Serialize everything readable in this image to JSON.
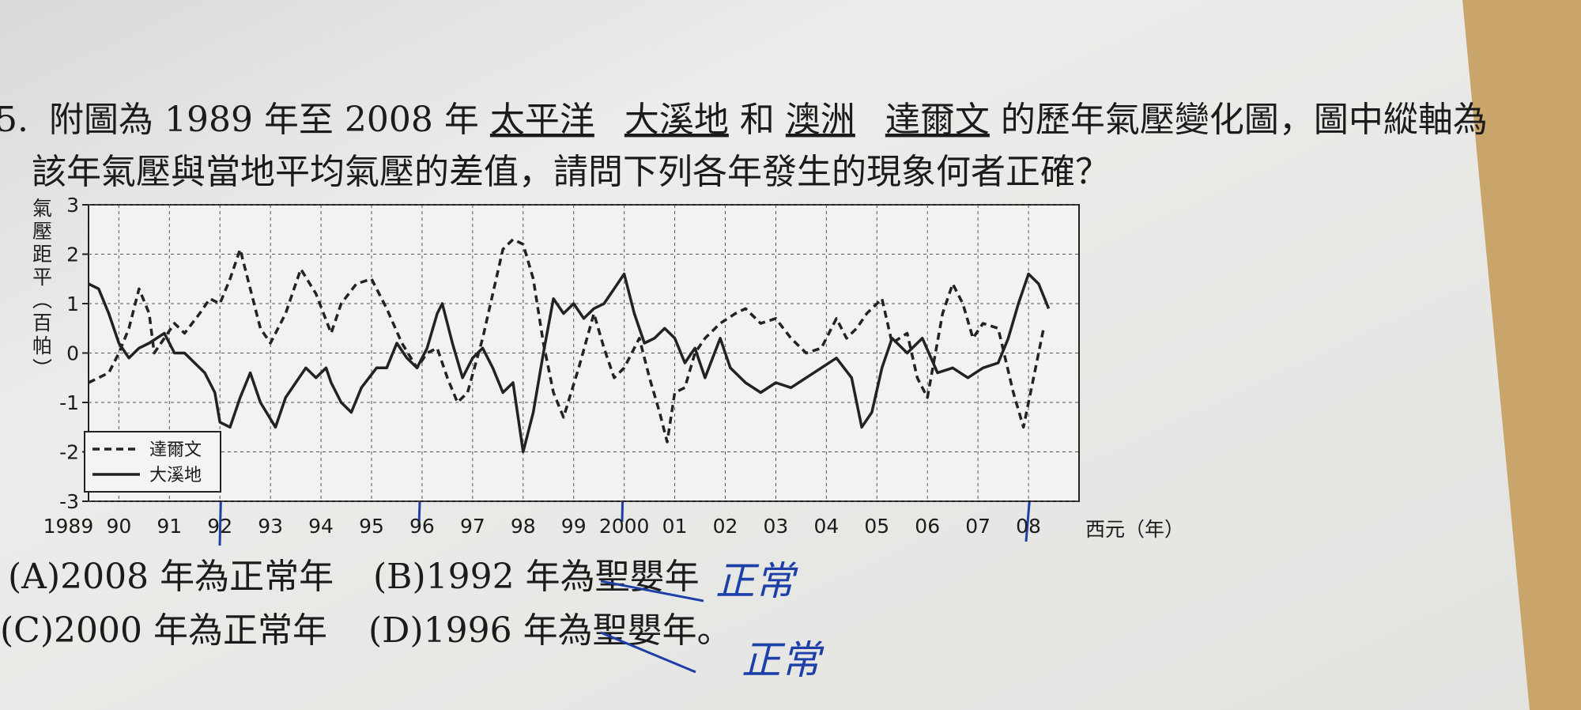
{
  "question": {
    "number": "5.",
    "line1": [
      "附圖為 1989 年至 2008 年",
      "太平洋",
      "大溪地",
      "和",
      "澳洲",
      "達爾文",
      "的歷年氣壓變化圖，圖中縱軸為"
    ],
    "line2": "該年氣壓與當地平均氣壓的差值，請問下列各年發生的現象何者正確？"
  },
  "options": [
    "(A)2008 年為正常年",
    "(B)1992 年為聖嬰年",
    "(C)2000 年為正常年",
    "(D)1996 年為聖嬰年。"
  ],
  "handwriting": [
    "正常",
    "正常"
  ],
  "chart_data": {
    "type": "line",
    "y_label": "氣壓距平（百帕）",
    "x_label": "西元（年）",
    "xlim": [
      1989.4,
      2009
    ],
    "ylim": [
      -3,
      3
    ],
    "yticks": [
      -3,
      -2,
      -1,
      0,
      1,
      2,
      3
    ],
    "xticks": [
      {
        "value": 1989,
        "label": "1989"
      },
      {
        "value": 1990,
        "label": "90"
      },
      {
        "value": 1991,
        "label": "91"
      },
      {
        "value": 1992,
        "label": "92"
      },
      {
        "value": 1993,
        "label": "93"
      },
      {
        "value": 1994,
        "label": "94"
      },
      {
        "value": 1995,
        "label": "95"
      },
      {
        "value": 1996,
        "label": "96"
      },
      {
        "value": 1997,
        "label": "97"
      },
      {
        "value": 1998,
        "label": "98"
      },
      {
        "value": 1999,
        "label": "99"
      },
      {
        "value": 2000,
        "label": "2000"
      },
      {
        "value": 2001,
        "label": "01"
      },
      {
        "value": 2002,
        "label": "02"
      },
      {
        "value": 2003,
        "label": "03"
      },
      {
        "value": 2004,
        "label": "04"
      },
      {
        "value": 2005,
        "label": "05"
      },
      {
        "value": 2006,
        "label": "06"
      },
      {
        "value": 2007,
        "label": "07"
      },
      {
        "value": 2008,
        "label": "08"
      }
    ],
    "grid": true,
    "legend": "lower-left",
    "series": [
      {
        "name": "達爾文",
        "color": "#222222",
        "dash": true,
        "x": [
          1989.4,
          1989.8,
          1990.0,
          1990.2,
          1990.4,
          1990.6,
          1990.7,
          1990.9,
          1991.1,
          1991.3,
          1991.6,
          1991.8,
          1992.0,
          1992.2,
          1992.4,
          1992.6,
          1992.8,
          1993.0,
          1993.3,
          1993.6,
          1993.9,
          1994.2,
          1994.4,
          1994.7,
          1995.0,
          1995.3,
          1995.6,
          1995.9,
          1996.1,
          1996.3,
          1996.5,
          1996.7,
          1996.9,
          1997.2,
          1997.4,
          1997.6,
          1997.8,
          1998.0,
          1998.2,
          1998.4,
          1998.6,
          1998.8,
          1999.1,
          1999.4,
          1999.6,
          1999.8,
          2000.0,
          2000.3,
          2000.5,
          2000.7,
          2000.85,
          2001.0,
          2001.2,
          2001.4,
          2001.6,
          2001.9,
          2002.2,
          2002.4,
          2002.7,
          2003.0,
          2003.3,
          2003.6,
          2003.9,
          2004.2,
          2004.4,
          2004.6,
          2004.8,
          2005.1,
          2005.3,
          2005.6,
          2005.8,
          2006.0,
          2006.3,
          2006.5,
          2006.7,
          2006.9,
          2007.1,
          2007.4,
          2007.7,
          2007.9,
          2008.1,
          2008.3
        ],
        "values": [
          -0.6,
          -0.4,
          0,
          0.5,
          1.3,
          0.8,
          0,
          0.3,
          0.6,
          0.4,
          0.8,
          1.1,
          1.0,
          1.5,
          2.1,
          1.3,
          0.5,
          0.2,
          0.8,
          1.7,
          1.2,
          0.4,
          1.0,
          1.4,
          1.5,
          0.9,
          0.2,
          -0.3,
          0,
          0.1,
          -0.5,
          -1.0,
          -0.8,
          0.3,
          1.2,
          2.1,
          2.3,
          2.2,
          1.5,
          0.2,
          -0.8,
          -1.3,
          -0.3,
          0.8,
          0.1,
          -0.5,
          -0.3,
          0.3,
          -0.5,
          -1.2,
          -1.8,
          -0.8,
          -0.7,
          0,
          0.3,
          0.6,
          0.8,
          0.9,
          0.6,
          0.7,
          0.3,
          0,
          0.1,
          0.7,
          0.3,
          0.5,
          0.8,
          1.1,
          0.2,
          0.4,
          -0.5,
          -0.9,
          0.8,
          1.4,
          1.0,
          0.3,
          0.6,
          0.5,
          -0.8,
          -1.5,
          -0.5,
          0.5
        ]
      },
      {
        "name": "大溪地",
        "color": "#222222",
        "dash": false,
        "x": [
          1989.4,
          1989.6,
          1989.8,
          1990.0,
          1990.2,
          1990.4,
          1990.6,
          1990.9,
          1991.1,
          1991.3,
          1991.5,
          1991.7,
          1991.9,
          1992.0,
          1992.2,
          1992.4,
          1992.6,
          1992.8,
          1993.1,
          1993.3,
          1993.5,
          1993.7,
          1993.9,
          1994.1,
          1994.2,
          1994.4,
          1994.6,
          1994.8,
          1995.1,
          1995.3,
          1995.5,
          1995.7,
          1995.9,
          1996.1,
          1996.3,
          1996.4,
          1996.6,
          1996.8,
          1997.0,
          1997.2,
          1997.4,
          1997.6,
          1997.8,
          1998.0,
          1998.2,
          1998.4,
          1998.6,
          1998.8,
          1999.0,
          1999.2,
          1999.4,
          1999.6,
          1999.8,
          2000.0,
          2000.2,
          2000.4,
          2000.6,
          2000.8,
          2001.0,
          2001.2,
          2001.4,
          2001.6,
          2001.9,
          2002.1,
          2002.4,
          2002.7,
          2003.0,
          2003.3,
          2003.6,
          2003.9,
          2004.2,
          2004.5,
          2004.7,
          2004.9,
          2005.1,
          2005.3,
          2005.6,
          2005.9,
          2006.2,
          2006.5,
          2006.8,
          2007.1,
          2007.4,
          2007.6,
          2007.8,
          2008.0,
          2008.2,
          2008.4
        ],
        "values": [
          1.4,
          1.3,
          0.8,
          0.2,
          -0.1,
          0.1,
          0.2,
          0.4,
          0,
          0,
          -0.2,
          -0.4,
          -0.8,
          -1.4,
          -1.5,
          -0.9,
          -0.4,
          -1.0,
          -1.5,
          -0.9,
          -0.6,
          -0.3,
          -0.5,
          -0.3,
          -0.6,
          -1.0,
          -1.2,
          -0.7,
          -0.3,
          -0.3,
          0.2,
          -0.1,
          -0.3,
          0.1,
          0.8,
          1.0,
          0.2,
          -0.5,
          -0.1,
          0.1,
          -0.3,
          -0.8,
          -0.6,
          -2.0,
          -1.2,
          0,
          1.1,
          0.8,
          1.0,
          0.7,
          0.9,
          1.0,
          1.3,
          1.6,
          0.8,
          0.2,
          0.3,
          0.5,
          0.3,
          -0.2,
          0.1,
          -0.5,
          0.3,
          -0.3,
          -0.6,
          -0.8,
          -0.6,
          -0.7,
          -0.5,
          -0.3,
          -0.1,
          -0.5,
          -1.5,
          -1.2,
          -0.3,
          0.3,
          0,
          0.3,
          -0.4,
          -0.3,
          -0.5,
          -0.3,
          -0.2,
          0.3,
          1.0,
          1.6,
          1.4,
          0.9
        ]
      }
    ]
  }
}
